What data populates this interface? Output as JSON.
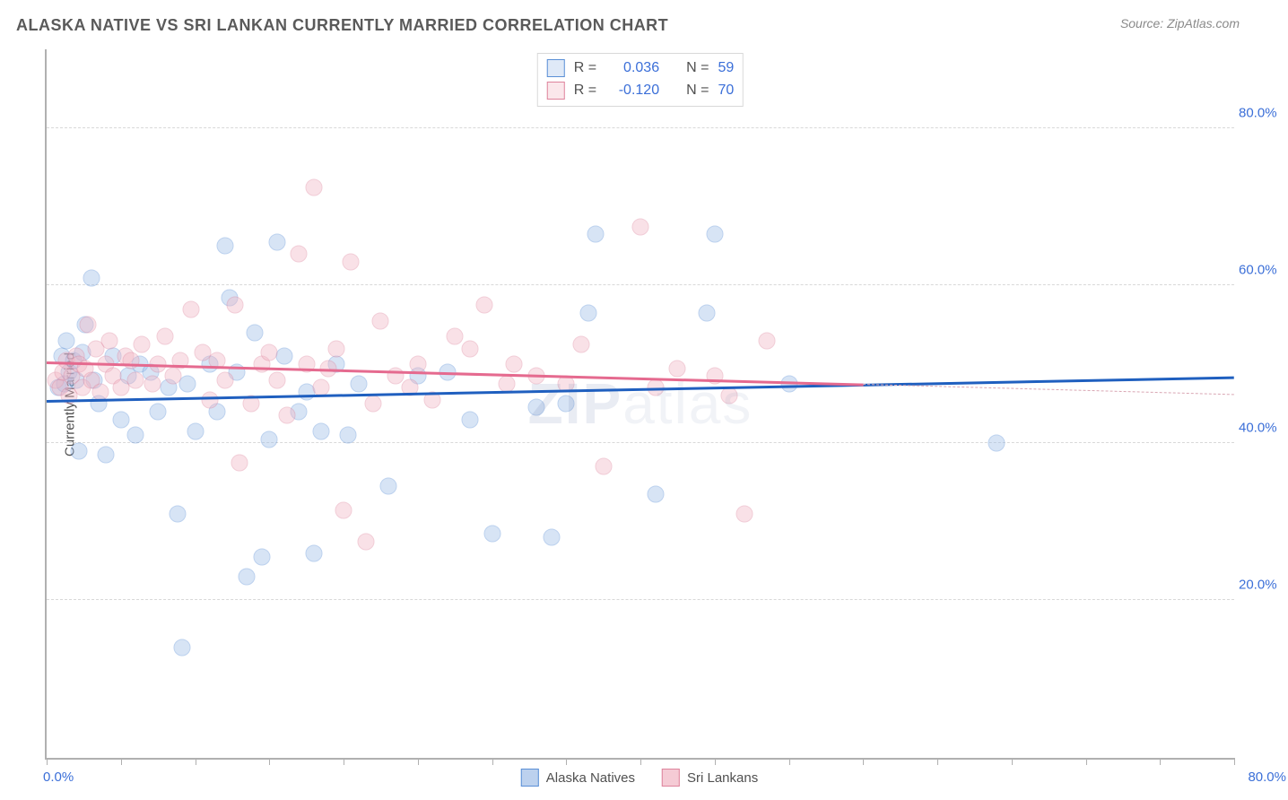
{
  "title": "ALASKA NATIVE VS SRI LANKAN CURRENTLY MARRIED CORRELATION CHART",
  "source": "Source: ZipAtlas.com",
  "watermark_a": "ZIP",
  "watermark_b": "atlas",
  "y_axis_label": "Currently Married",
  "chart": {
    "type": "scatter",
    "xlim": [
      0,
      80
    ],
    "ylim": [
      0,
      90
    ],
    "x_tick_positions": [
      0,
      5,
      10,
      15,
      20,
      25,
      30,
      35,
      40,
      45,
      50,
      55,
      60,
      65,
      70,
      75,
      80
    ],
    "x_axis_labels": {
      "left": "0.0%",
      "right": "80.0%"
    },
    "y_gridlines": [
      20,
      40,
      60,
      80
    ],
    "y_axis_labels": [
      "20.0%",
      "40.0%",
      "60.0%",
      "80.0%"
    ],
    "background_color": "#ffffff",
    "grid_color": "#d8d8d8",
    "axis_color": "#b0b0b0",
    "value_color": "#3b6fd8",
    "text_color": "#505050",
    "marker_radius": 9.5,
    "marker_border_width": 1.2,
    "marker_opacity": 0.4,
    "series": [
      {
        "name": "Alaska Natives",
        "fill_color": "#9ebde8",
        "stroke_color": "#5a8fd6",
        "trend": {
          "x1": 0,
          "y1": 45.5,
          "x2": 80,
          "y2": 48.5,
          "color": "#1f5fbf",
          "width": 2.5
        },
        "stats": {
          "R_label": "R =",
          "R": "0.036",
          "N_label": "N =",
          "N": "59"
        },
        "points": [
          [
            0.8,
            47.0
          ],
          [
            1.0,
            51.0
          ],
          [
            1.2,
            47.5
          ],
          [
            1.3,
            53.0
          ],
          [
            1.5,
            49.0
          ],
          [
            1.8,
            50.5
          ],
          [
            2.0,
            48.0
          ],
          [
            2.2,
            39.0
          ],
          [
            2.4,
            51.5
          ],
          [
            2.6,
            55.0
          ],
          [
            3.0,
            61.0
          ],
          [
            3.2,
            48.0
          ],
          [
            3.5,
            45.0
          ],
          [
            4.0,
            38.5
          ],
          [
            4.5,
            51.0
          ],
          [
            5.0,
            43.0
          ],
          [
            5.5,
            48.5
          ],
          [
            6.0,
            41.0
          ],
          [
            6.3,
            50.0
          ],
          [
            7.0,
            49.0
          ],
          [
            7.5,
            44.0
          ],
          [
            8.2,
            47.0
          ],
          [
            8.8,
            31.0
          ],
          [
            9.1,
            14.0
          ],
          [
            9.5,
            47.5
          ],
          [
            10.0,
            41.5
          ],
          [
            11.0,
            50.0
          ],
          [
            11.5,
            44.0
          ],
          [
            12.0,
            65.0
          ],
          [
            12.3,
            58.5
          ],
          [
            12.8,
            49.0
          ],
          [
            13.5,
            23.0
          ],
          [
            14.0,
            54.0
          ],
          [
            14.5,
            25.5
          ],
          [
            15.0,
            40.5
          ],
          [
            15.5,
            65.5
          ],
          [
            16.0,
            51.0
          ],
          [
            17.0,
            44.0
          ],
          [
            17.5,
            46.5
          ],
          [
            18.0,
            26.0
          ],
          [
            18.5,
            41.5
          ],
          [
            19.5,
            50.0
          ],
          [
            20.3,
            41.0
          ],
          [
            21.0,
            47.5
          ],
          [
            23.0,
            34.5
          ],
          [
            25.0,
            48.5
          ],
          [
            27.0,
            49.0
          ],
          [
            28.5,
            43.0
          ],
          [
            30.0,
            28.5
          ],
          [
            33.0,
            44.5
          ],
          [
            34.0,
            28.0
          ],
          [
            35.0,
            45.0
          ],
          [
            36.5,
            56.5
          ],
          [
            37.0,
            66.5
          ],
          [
            41.0,
            33.5
          ],
          [
            44.5,
            56.5
          ],
          [
            45.0,
            66.5
          ],
          [
            50.0,
            47.5
          ],
          [
            64.0,
            40.0
          ]
        ]
      },
      {
        "name": "Sri Lankans",
        "fill_color": "#f2b6c4",
        "stroke_color": "#de839c",
        "trend_solid": {
          "x1": 0,
          "y1": 50.3,
          "x2": 55,
          "y2": 47.5,
          "color": "#e56a8f",
          "width": 2.5
        },
        "trend_dash": {
          "x1": 55,
          "y1": 47.5,
          "x2": 80,
          "y2": 46.2,
          "color": "#d9a6b3"
        },
        "stats": {
          "R_label": "R =",
          "R": "-0.120",
          "N_label": "N =",
          "N": "70"
        },
        "points": [
          [
            0.6,
            48.0
          ],
          [
            0.9,
            47.0
          ],
          [
            1.1,
            49.0
          ],
          [
            1.3,
            50.5
          ],
          [
            1.5,
            46.0
          ],
          [
            1.7,
            48.5
          ],
          [
            2.0,
            51.0
          ],
          [
            2.2,
            50.0
          ],
          [
            2.4,
            47.0
          ],
          [
            2.6,
            49.5
          ],
          [
            2.8,
            55.0
          ],
          [
            3.0,
            48.0
          ],
          [
            3.3,
            52.0
          ],
          [
            3.6,
            46.5
          ],
          [
            4.0,
            50.0
          ],
          [
            4.2,
            53.0
          ],
          [
            4.5,
            48.5
          ],
          [
            5.0,
            47.0
          ],
          [
            5.3,
            51.0
          ],
          [
            5.7,
            50.5
          ],
          [
            6.0,
            48.0
          ],
          [
            6.4,
            52.5
          ],
          [
            7.1,
            47.5
          ],
          [
            7.5,
            50.0
          ],
          [
            8.0,
            53.5
          ],
          [
            8.5,
            48.5
          ],
          [
            9.0,
            50.5
          ],
          [
            9.7,
            57.0
          ],
          [
            10.5,
            51.5
          ],
          [
            11.0,
            45.5
          ],
          [
            11.5,
            50.5
          ],
          [
            12.0,
            48.0
          ],
          [
            12.7,
            57.5
          ],
          [
            13.0,
            37.5
          ],
          [
            13.8,
            45.0
          ],
          [
            14.5,
            50.0
          ],
          [
            15.0,
            51.5
          ],
          [
            15.5,
            48.0
          ],
          [
            16.2,
            43.5
          ],
          [
            17.0,
            64.0
          ],
          [
            17.5,
            50.0
          ],
          [
            18.0,
            72.5
          ],
          [
            18.5,
            47.0
          ],
          [
            19.0,
            49.5
          ],
          [
            19.5,
            52.0
          ],
          [
            20.0,
            31.5
          ],
          [
            20.5,
            63.0
          ],
          [
            21.5,
            27.5
          ],
          [
            22.0,
            45.0
          ],
          [
            22.5,
            55.5
          ],
          [
            23.5,
            48.5
          ],
          [
            24.5,
            47.0
          ],
          [
            25.0,
            50.0
          ],
          [
            26.0,
            45.5
          ],
          [
            27.5,
            53.5
          ],
          [
            28.5,
            52.0
          ],
          [
            29.5,
            57.5
          ],
          [
            31.0,
            47.5
          ],
          [
            31.5,
            50.0
          ],
          [
            33.0,
            48.5
          ],
          [
            35.0,
            47.5
          ],
          [
            36.0,
            52.5
          ],
          [
            37.5,
            37.0
          ],
          [
            40.0,
            67.5
          ],
          [
            41.0,
            47.0
          ],
          [
            42.5,
            49.5
          ],
          [
            45.0,
            48.5
          ],
          [
            46.0,
            46.0
          ],
          [
            48.5,
            53.0
          ],
          [
            47.0,
            31.0
          ]
        ]
      }
    ]
  },
  "legend_bottom": [
    {
      "label": "Alaska Natives",
      "fill": "#bcd1ee",
      "stroke": "#5a8fd6"
    },
    {
      "label": "Sri Lankans",
      "fill": "#f5cbd5",
      "stroke": "#de839c"
    }
  ]
}
